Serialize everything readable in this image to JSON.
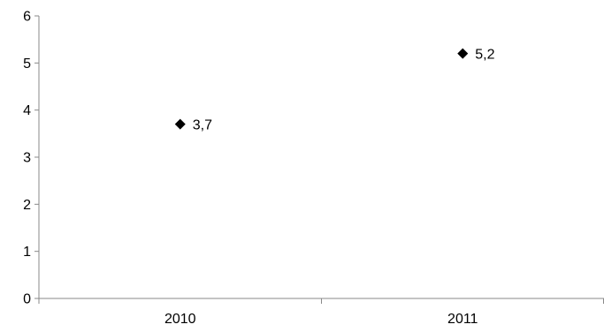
{
  "chart_data": {
    "type": "scatter",
    "categories": [
      "2010",
      "2011"
    ],
    "series": [
      {
        "values": [
          3.7,
          5.2
        ],
        "data_labels": [
          "3,7",
          "5,2"
        ],
        "marker": "diamond",
        "color": "#000000"
      }
    ],
    "ylim": [
      0,
      6
    ],
    "yticks": [
      0,
      1,
      2,
      3,
      4,
      5,
      6
    ],
    "ytick_labels": [
      "0",
      "1",
      "2",
      "3",
      "4",
      "5",
      "6"
    ],
    "title": "",
    "xlabel": "",
    "ylabel": "",
    "grid": false,
    "legend": false,
    "axis_color": "#898989"
  }
}
